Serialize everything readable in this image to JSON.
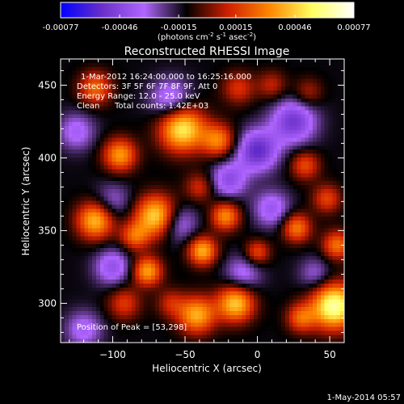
{
  "chart_data": {
    "type": "heatmap",
    "title": "Reconstructed RHESSI Image",
    "xlabel": "Heliocentric X (arcsec)",
    "ylabel": "Heliocentric Y (arcsec)",
    "xlim": [
      -136,
      60
    ],
    "ylim": [
      273,
      468
    ],
    "x_ticks": [
      -100,
      -50,
      0,
      50
    ],
    "y_ticks": [
      300,
      350,
      400,
      450
    ],
    "colorbar": {
      "range": [
        -0.00077,
        0.00077
      ],
      "tick_values": [
        -0.00077,
        -0.00046,
        -0.00015,
        0.00015,
        0.00046,
        0.00077
      ],
      "tick_labels": [
        "-0.00077",
        "-0.00046",
        "-0.00015",
        "0.00015",
        "0.00046",
        "0.00077"
      ],
      "unit_label_parts": [
        "(photons cm",
        "-2",
        " s",
        "-1",
        " asec",
        "-2",
        ")"
      ],
      "colors": [
        "#0000ff",
        "#6a30c8",
        "#b066ff",
        "#000000",
        "#d02000",
        "#ff8800",
        "#ffff60",
        "#ffffff"
      ]
    },
    "annotations": {
      "time": "1-Mar-2012 16:24:00.000 to 16:25:16.000",
      "detectors": "Detectors: 3F 5F 6F 7F 8F 9F, Att 0",
      "energy": "Energy Range: 12.0 - 25.0 keV",
      "algorithm": "Clean",
      "counts": "Total counts: 1.42E+03",
      "peak": "Position of Peak = [53,298]"
    },
    "peak": [
      53,
      298
    ],
    "blobs": [
      {
        "x": 53,
        "y": 298,
        "value": 0.00077,
        "sigma": 11
      },
      {
        "x": -15,
        "y": 300,
        "value": 0.00058,
        "sigma": 9
      },
      {
        "x": -42,
        "y": 292,
        "value": 0.00052,
        "sigma": 9
      },
      {
        "x": -92,
        "y": 300,
        "value": 0.00028,
        "sigma": 8
      },
      {
        "x": 30,
        "y": 290,
        "value": 0.00035,
        "sigma": 7
      },
      {
        "x": -60,
        "y": 300,
        "value": 0.00022,
        "sigma": 7
      },
      {
        "x": -70,
        "y": 360,
        "value": 0.00062,
        "sigma": 10
      },
      {
        "x": -112,
        "y": 357,
        "value": 0.00055,
        "sigma": 9
      },
      {
        "x": -85,
        "y": 346,
        "value": 0.00035,
        "sigma": 7
      },
      {
        "x": -95,
        "y": 402,
        "value": 0.00048,
        "sigma": 8
      },
      {
        "x": -52,
        "y": 420,
        "value": 0.00066,
        "sigma": 11
      },
      {
        "x": -27,
        "y": 412,
        "value": 0.00042,
        "sigma": 8
      },
      {
        "x": -112,
        "y": 448,
        "value": 0.00038,
        "sigma": 8
      },
      {
        "x": -40,
        "y": 380,
        "value": 0.00025,
        "sigma": 7
      },
      {
        "x": -22,
        "y": 360,
        "value": 0.00045,
        "sigma": 7
      },
      {
        "x": -38,
        "y": 336,
        "value": 0.00052,
        "sigma": 7
      },
      {
        "x": -76,
        "y": 322,
        "value": 0.0005,
        "sigma": 7
      },
      {
        "x": 0,
        "y": 335,
        "value": 0.00032,
        "sigma": 6
      },
      {
        "x": 27,
        "y": 352,
        "value": 0.00042,
        "sigma": 7
      },
      {
        "x": 33,
        "y": 395,
        "value": 0.00032,
        "sigma": 7
      },
      {
        "x": 55,
        "y": 340,
        "value": 0.0004,
        "sigma": 7
      },
      {
        "x": 48,
        "y": 372,
        "value": 0.0003,
        "sigma": 7
      },
      {
        "x": -13,
        "y": 448,
        "value": 0.00026,
        "sigma": 8
      },
      {
        "x": 10,
        "y": 450,
        "value": 0.00022,
        "sigma": 7
      },
      {
        "x": 35,
        "y": 445,
        "value": 0.0002,
        "sigma": 7
      },
      {
        "x": -100,
        "y": 370,
        "value": -0.0002,
        "sigma": 9
      },
      {
        "x": -125,
        "y": 418,
        "value": -0.00025,
        "sigma": 9
      },
      {
        "x": -60,
        "y": 440,
        "value": -0.0003,
        "sigma": 10
      },
      {
        "x": 0,
        "y": 405,
        "value": -0.00045,
        "sigma": 10
      },
      {
        "x": 25,
        "y": 425,
        "value": -0.0004,
        "sigma": 11
      },
      {
        "x": -20,
        "y": 385,
        "value": -0.00032,
        "sigma": 9
      },
      {
        "x": 10,
        "y": 365,
        "value": -0.00028,
        "sigma": 9
      },
      {
        "x": -55,
        "y": 355,
        "value": -0.00028,
        "sigma": 9
      },
      {
        "x": -100,
        "y": 325,
        "value": -0.0003,
        "sigma": 9
      },
      {
        "x": -10,
        "y": 320,
        "value": -0.00025,
        "sigma": 9
      },
      {
        "x": 40,
        "y": 320,
        "value": -0.0002,
        "sigma": 8
      },
      {
        "x": -120,
        "y": 282,
        "value": -0.00025,
        "sigma": 9
      }
    ]
  },
  "footer": {
    "date": "1-May-2014 05:57"
  }
}
